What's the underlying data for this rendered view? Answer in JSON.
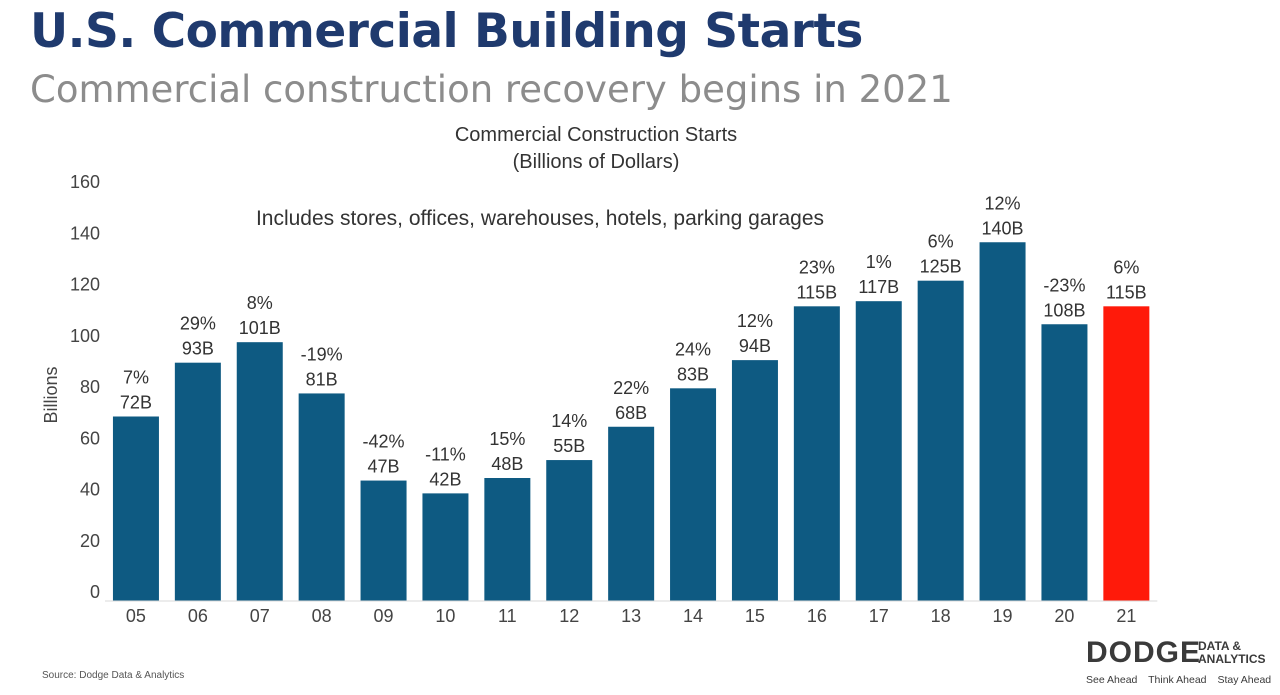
{
  "slide": {
    "title": "U.S. Commercial Building Starts",
    "subtitle": "Commercial construction recovery begins in 2021",
    "source": "Source: Dodge Data & Analytics"
  },
  "logo": {
    "word": "DODGE",
    "suffix_line1": "DATA &",
    "suffix_line2": "ANALYTICS",
    "tagline": [
      "See Ahead",
      "Think Ahead",
      "Stay Ahead"
    ]
  },
  "chart_data": {
    "type": "bar",
    "title": "Commercial Construction Starts",
    "subtitle": "(Billions of Dollars)",
    "annotation": "Includes stores, offices, warehouses, hotels, parking garages",
    "ylabel": "Billions",
    "xlabel": "",
    "ylim": [
      0,
      160
    ],
    "yticks": [
      0,
      20,
      40,
      60,
      80,
      100,
      120,
      140,
      160
    ],
    "grid": false,
    "categories": [
      "05",
      "06",
      "07",
      "08",
      "09",
      "10",
      "11",
      "12",
      "13",
      "14",
      "15",
      "16",
      "17",
      "18",
      "19",
      "20",
      "21"
    ],
    "values": [
      72,
      93,
      101,
      81,
      47,
      42,
      48,
      55,
      68,
      83,
      94,
      115,
      117,
      125,
      140,
      108,
      115
    ],
    "value_labels": [
      "72B",
      "93B",
      "101B",
      "81B",
      "47B",
      "42B",
      "48B",
      "55B",
      "68B",
      "83B",
      "94B",
      "115B",
      "117B",
      "125B",
      "140B",
      "108B",
      "115B"
    ],
    "pct_labels": [
      "7%",
      "29%",
      "8%",
      "-19%",
      "-42%",
      "-11%",
      "15%",
      "14%",
      "22%",
      "24%",
      "12%",
      "23%",
      "1%",
      "6%",
      "12%",
      "-23%",
      "6%"
    ],
    "colors": {
      "bar": "#0e5a82",
      "highlight": "#ff1a0a"
    },
    "highlight_category": "21"
  }
}
